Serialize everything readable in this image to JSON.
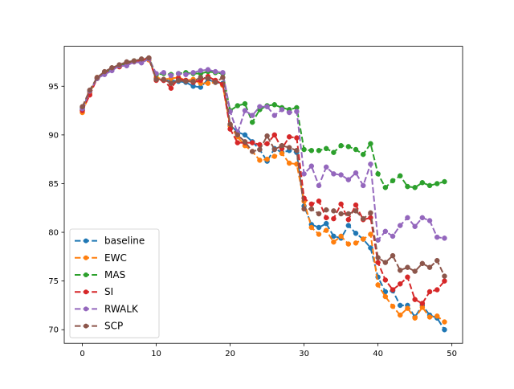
{
  "chart_data": {
    "type": "line",
    "title": "",
    "xlabel": "",
    "ylabel": "",
    "xlim": [
      -2.45,
      51.45
    ],
    "ylim": [
      68.6,
      99.1
    ],
    "xticks": [
      0,
      10,
      20,
      30,
      40,
      50
    ],
    "yticks": [
      70,
      75,
      80,
      85,
      90,
      95
    ],
    "legend_position": "lower-left",
    "grid": false,
    "x": [
      0,
      1,
      2,
      3,
      4,
      5,
      6,
      7,
      8,
      9,
      10,
      11,
      12,
      13,
      14,
      15,
      16,
      17,
      18,
      19,
      20,
      21,
      22,
      23,
      24,
      25,
      26,
      27,
      28,
      29,
      30,
      31,
      32,
      33,
      34,
      35,
      36,
      37,
      38,
      39,
      40,
      41,
      42,
      43,
      44,
      45,
      46,
      47,
      48,
      49
    ],
    "series": [
      {
        "name": "baseline",
        "color": "#1f77b4",
        "values": [
          92.6,
          94.4,
          95.8,
          96.3,
          96.7,
          97.1,
          97.4,
          97.6,
          97.6,
          97.9,
          95.8,
          95.6,
          95.6,
          95.5,
          95.4,
          95.0,
          94.9,
          95.7,
          95.4,
          95.3,
          91.0,
          90.3,
          90.0,
          89.3,
          88.5,
          87.3,
          88.6,
          88.2,
          88.4,
          88.2,
          82.7,
          80.8,
          80.5,
          80.9,
          79.6,
          79.4,
          80.7,
          79.9,
          79.3,
          78.4,
          75.4,
          73.9,
          74.0,
          72.5,
          72.5,
          71.3,
          72.5,
          71.5,
          71.2,
          70.0
        ]
      },
      {
        "name": "EWC",
        "color": "#ff7f0e",
        "values": [
          92.3,
          94.3,
          95.9,
          96.3,
          96.8,
          97.0,
          97.3,
          97.6,
          97.7,
          97.7,
          95.9,
          95.7,
          95.8,
          95.9,
          95.6,
          95.7,
          95.3,
          95.3,
          95.4,
          95.1,
          90.9,
          89.8,
          88.9,
          88.3,
          87.4,
          87.5,
          87.8,
          88.1,
          87.1,
          87.0,
          83.2,
          80.5,
          79.8,
          80.2,
          79.0,
          79.6,
          78.8,
          78.9,
          79.3,
          79.8,
          74.6,
          73.4,
          72.4,
          71.5,
          72.2,
          71.2,
          72.3,
          71.3,
          71.4,
          70.8
        ]
      },
      {
        "name": "MAS",
        "color": "#2ca02c",
        "values": [
          92.8,
          94.5,
          95.8,
          96.4,
          96.7,
          97.1,
          97.3,
          97.6,
          97.6,
          97.9,
          96.2,
          96.3,
          96.2,
          96.3,
          96.4,
          96.3,
          96.3,
          96.5,
          96.4,
          96.3,
          92.5,
          93.0,
          93.2,
          91.3,
          92.6,
          93.0,
          93.1,
          92.8,
          92.6,
          92.8,
          88.5,
          88.4,
          88.4,
          88.6,
          88.2,
          88.9,
          88.8,
          88.5,
          88.0,
          89.1,
          86.0,
          84.6,
          85.3,
          85.8,
          84.7,
          84.6,
          85.1,
          84.8,
          85.0,
          85.2
        ]
      },
      {
        "name": "SI",
        "color": "#d62728",
        "values": [
          92.5,
          94.1,
          95.8,
          96.3,
          96.8,
          97.0,
          97.2,
          97.5,
          97.7,
          97.9,
          95.6,
          95.6,
          94.8,
          95.8,
          95.6,
          95.4,
          95.6,
          96.0,
          95.6,
          95.2,
          90.6,
          89.2,
          89.2,
          89.2,
          89.0,
          89.1,
          90.0,
          88.6,
          89.8,
          89.7,
          83.5,
          82.9,
          83.2,
          81.5,
          81.4,
          82.9,
          81.3,
          82.8,
          81.3,
          81.5,
          76.9,
          75.1,
          74.1,
          74.7,
          75.4,
          73.1,
          72.7,
          73.9,
          74.1,
          75.0
        ]
      },
      {
        "name": "RWALK",
        "color": "#9467bd",
        "values": [
          92.7,
          94.5,
          95.8,
          96.2,
          96.6,
          97.1,
          97.1,
          97.5,
          97.4,
          97.8,
          96.3,
          96.4,
          96.1,
          96.3,
          96.2,
          96.4,
          96.6,
          96.7,
          96.5,
          96.4,
          92.4,
          90.2,
          92.5,
          92.0,
          92.9,
          92.9,
          92.0,
          92.6,
          92.3,
          92.4,
          86.0,
          86.8,
          84.8,
          86.7,
          86.0,
          85.9,
          85.4,
          86.1,
          84.8,
          87.0,
          79.2,
          80.1,
          79.6,
          80.7,
          81.5,
          80.6,
          81.5,
          81.2,
          79.5,
          79.4
        ]
      },
      {
        "name": "SCP",
        "color": "#8c564b",
        "values": [
          92.9,
          94.6,
          95.9,
          96.5,
          96.9,
          97.2,
          97.5,
          97.6,
          97.8,
          97.9,
          95.7,
          95.7,
          95.3,
          95.6,
          95.5,
          95.5,
          95.9,
          95.8,
          95.4,
          95.9,
          91.1,
          90.0,
          89.3,
          88.3,
          88.5,
          89.9,
          88.5,
          88.9,
          88.7,
          88.4,
          82.4,
          82.4,
          81.9,
          82.3,
          82.2,
          81.9,
          81.9,
          82.2,
          81.4,
          82.0,
          77.4,
          76.9,
          77.6,
          76.1,
          76.4,
          76.0,
          76.8,
          76.4,
          77.1,
          75.5
        ]
      }
    ]
  }
}
